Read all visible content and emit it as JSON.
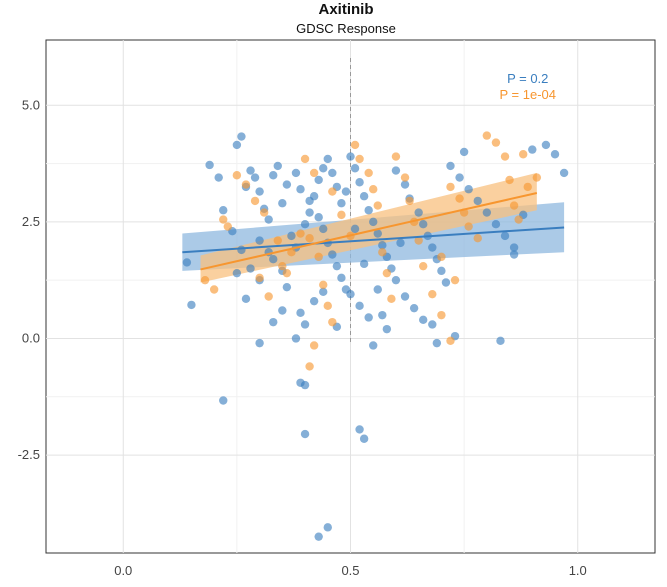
{
  "chart_data": {
    "type": "scatter",
    "title": "Axitinib",
    "subtitle": "GDSC Response",
    "xlabel": "",
    "ylabel": "",
    "xlim": [
      -0.17,
      1.17
    ],
    "ylim": [
      -4.6,
      6.4
    ],
    "x_ticks": [
      0.0,
      0.5,
      1.0
    ],
    "x_tick_labels": [
      "0.0",
      "0.5",
      "1.0"
    ],
    "y_ticks": [
      -2.5,
      0.0,
      2.5,
      5.0
    ],
    "y_tick_labels": [
      "-2.5",
      "0.0",
      "2.5",
      "5.0"
    ],
    "vline_x": 0.5,
    "grid": true,
    "annotations": [
      {
        "text": "P = 0.2",
        "color": "#3a7ebf",
        "x": 0.89,
        "y": 5.6
      },
      {
        "text": "P = 1e-04",
        "color": "#f7962f",
        "x": 0.89,
        "y": 5.4
      }
    ],
    "series": [
      {
        "color": "#3a7ebf",
        "fit": {
          "x": [
            0.13,
            0.97
          ],
          "y": [
            1.85,
            2.38
          ],
          "ci_low": [
            1.45,
            1.85
          ],
          "ci_high": [
            2.25,
            2.92
          ]
        },
        "points": [
          [
            0.14,
            1.63
          ],
          [
            0.15,
            0.72
          ],
          [
            0.22,
            -1.33
          ],
          [
            0.26,
            4.33
          ],
          [
            0.25,
            4.15
          ],
          [
            0.19,
            3.72
          ],
          [
            0.22,
            2.75
          ],
          [
            0.21,
            3.45
          ],
          [
            0.28,
            3.6
          ],
          [
            0.29,
            3.45
          ],
          [
            0.3,
            3.15
          ],
          [
            0.27,
            3.25
          ],
          [
            0.33,
            3.5
          ],
          [
            0.34,
            3.7
          ],
          [
            0.31,
            2.78
          ],
          [
            0.32,
            2.55
          ],
          [
            0.35,
            2.9
          ],
          [
            0.36,
            3.3
          ],
          [
            0.38,
            3.55
          ],
          [
            0.39,
            3.2
          ],
          [
            0.3,
            2.1
          ],
          [
            0.32,
            1.85
          ],
          [
            0.28,
            1.5
          ],
          [
            0.3,
            1.25
          ],
          [
            0.33,
            1.7
          ],
          [
            0.35,
            1.45
          ],
          [
            0.37,
            2.2
          ],
          [
            0.38,
            1.95
          ],
          [
            0.4,
            2.45
          ],
          [
            0.41,
            2.7
          ],
          [
            0.42,
            3.05
          ],
          [
            0.43,
            3.4
          ],
          [
            0.44,
            3.65
          ],
          [
            0.45,
            3.85
          ],
          [
            0.46,
            3.55
          ],
          [
            0.47,
            3.25
          ],
          [
            0.41,
            2.95
          ],
          [
            0.43,
            2.6
          ],
          [
            0.44,
            2.35
          ],
          [
            0.45,
            2.05
          ],
          [
            0.46,
            1.8
          ],
          [
            0.47,
            1.55
          ],
          [
            0.48,
            1.3
          ],
          [
            0.49,
            1.05
          ],
          [
            0.42,
            0.8
          ],
          [
            0.44,
            1.0
          ],
          [
            0.39,
            0.55
          ],
          [
            0.4,
            0.3
          ],
          [
            0.38,
            0.0
          ],
          [
            0.39,
            -0.95
          ],
          [
            0.4,
            -1.0
          ],
          [
            0.4,
            -2.05
          ],
          [
            0.43,
            -4.25
          ],
          [
            0.45,
            -4.05
          ],
          [
            0.52,
            -1.95
          ],
          [
            0.53,
            -2.15
          ],
          [
            0.5,
            3.9
          ],
          [
            0.51,
            3.65
          ],
          [
            0.52,
            3.35
          ],
          [
            0.53,
            3.05
          ],
          [
            0.54,
            2.75
          ],
          [
            0.55,
            2.5
          ],
          [
            0.56,
            2.25
          ],
          [
            0.57,
            2.0
          ],
          [
            0.58,
            1.75
          ],
          [
            0.59,
            1.5
          ],
          [
            0.6,
            1.25
          ],
          [
            0.5,
            0.95
          ],
          [
            0.52,
            0.7
          ],
          [
            0.54,
            0.45
          ],
          [
            0.55,
            -0.15
          ],
          [
            0.57,
            0.5
          ],
          [
            0.6,
            3.6
          ],
          [
            0.62,
            3.3
          ],
          [
            0.63,
            3.0
          ],
          [
            0.65,
            2.7
          ],
          [
            0.66,
            2.45
          ],
          [
            0.67,
            2.2
          ],
          [
            0.68,
            1.95
          ],
          [
            0.69,
            1.7
          ],
          [
            0.7,
            1.45
          ],
          [
            0.71,
            1.2
          ],
          [
            0.62,
            0.9
          ],
          [
            0.64,
            0.65
          ],
          [
            0.66,
            0.4
          ],
          [
            0.68,
            0.3
          ],
          [
            0.69,
            -0.1
          ],
          [
            0.73,
            0.05
          ],
          [
            0.72,
            3.7
          ],
          [
            0.74,
            3.45
          ],
          [
            0.76,
            3.2
          ],
          [
            0.78,
            2.95
          ],
          [
            0.8,
            2.7
          ],
          [
            0.82,
            2.45
          ],
          [
            0.84,
            2.2
          ],
          [
            0.86,
            1.95
          ],
          [
            0.83,
            -0.05
          ],
          [
            0.9,
            4.05
          ],
          [
            0.93,
            4.15
          ],
          [
            0.95,
            3.95
          ],
          [
            0.97,
            3.55
          ],
          [
            0.88,
            2.65
          ],
          [
            0.86,
            1.8
          ],
          [
            0.75,
            4.0
          ],
          [
            0.35,
            0.6
          ],
          [
            0.33,
            0.35
          ],
          [
            0.3,
            -0.1
          ],
          [
            0.27,
            0.85
          ],
          [
            0.25,
            1.4
          ],
          [
            0.24,
            2.3
          ],
          [
            0.26,
            1.9
          ],
          [
            0.36,
            1.1
          ],
          [
            0.47,
            0.25
          ],
          [
            0.48,
            2.9
          ],
          [
            0.49,
            3.15
          ],
          [
            0.51,
            2.35
          ],
          [
            0.53,
            1.6
          ],
          [
            0.56,
            1.05
          ],
          [
            0.58,
            0.2
          ],
          [
            0.61,
            2.05
          ]
        ]
      },
      {
        "color": "#f7962f",
        "fit": {
          "x": [
            0.17,
            0.91
          ],
          "y": [
            1.48,
            3.12
          ],
          "ci_low": [
            1.2,
            2.75
          ],
          "ci_high": [
            1.78,
            3.55
          ]
        },
        "points": [
          [
            0.18,
            1.25
          ],
          [
            0.2,
            1.05
          ],
          [
            0.22,
            2.55
          ],
          [
            0.23,
            2.4
          ],
          [
            0.25,
            3.5
          ],
          [
            0.27,
            3.3
          ],
          [
            0.29,
            2.95
          ],
          [
            0.31,
            2.7
          ],
          [
            0.3,
            1.3
          ],
          [
            0.32,
            0.9
          ],
          [
            0.35,
            1.55
          ],
          [
            0.37,
            1.85
          ],
          [
            0.39,
            2.25
          ],
          [
            0.4,
            3.85
          ],
          [
            0.42,
            3.55
          ],
          [
            0.41,
            2.15
          ],
          [
            0.43,
            1.75
          ],
          [
            0.44,
            1.15
          ],
          [
            0.45,
            0.7
          ],
          [
            0.46,
            0.35
          ],
          [
            0.42,
            -0.15
          ],
          [
            0.41,
            -0.6
          ],
          [
            0.48,
            2.65
          ],
          [
            0.5,
            2.2
          ],
          [
            0.51,
            4.15
          ],
          [
            0.52,
            3.85
          ],
          [
            0.54,
            3.55
          ],
          [
            0.55,
            3.2
          ],
          [
            0.56,
            2.85
          ],
          [
            0.57,
            1.85
          ],
          [
            0.58,
            1.4
          ],
          [
            0.59,
            0.85
          ],
          [
            0.6,
            3.9
          ],
          [
            0.62,
            3.45
          ],
          [
            0.63,
            2.95
          ],
          [
            0.64,
            2.5
          ],
          [
            0.65,
            2.1
          ],
          [
            0.66,
            1.55
          ],
          [
            0.68,
            0.95
          ],
          [
            0.7,
            1.75
          ],
          [
            0.72,
            3.25
          ],
          [
            0.74,
            3.0
          ],
          [
            0.75,
            2.7
          ],
          [
            0.76,
            2.4
          ],
          [
            0.78,
            2.15
          ],
          [
            0.8,
            4.35
          ],
          [
            0.82,
            4.2
          ],
          [
            0.84,
            3.9
          ],
          [
            0.85,
            3.4
          ],
          [
            0.86,
            2.85
          ],
          [
            0.88,
            3.95
          ],
          [
            0.89,
            3.25
          ],
          [
            0.91,
            3.45
          ],
          [
            0.87,
            2.55
          ],
          [
            0.7,
            0.5
          ],
          [
            0.72,
            -0.05
          ],
          [
            0.73,
            1.25
          ],
          [
            0.46,
            3.15
          ],
          [
            0.34,
            2.1
          ],
          [
            0.36,
            1.4
          ]
        ]
      }
    ]
  }
}
